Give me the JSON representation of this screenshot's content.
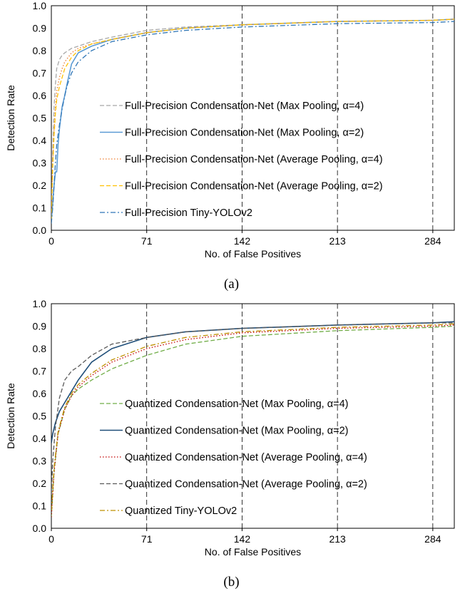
{
  "chart_data": [
    {
      "type": "line",
      "caption": "(a)",
      "title": "",
      "xlabel": "No. of False Positives",
      "ylabel": "Detection Rate",
      "xlim": [
        0,
        300
      ],
      "ylim": [
        0,
        1.0
      ],
      "xticks": [
        0,
        71,
        142,
        213,
        284
      ],
      "yticks": [
        0.0,
        0.1,
        0.2,
        0.3,
        0.4,
        0.5,
        0.6,
        0.7,
        0.8,
        0.9,
        1.0
      ],
      "ytick_labels": [
        "0.0",
        "0.1",
        "0.2",
        "0.3",
        "0.4",
        "0.5",
        "0.6",
        "0.7",
        "0.8",
        "0.9",
        "1.0"
      ],
      "vertical_gridlines": [
        71,
        142,
        213,
        284
      ],
      "legend_position": "center-right",
      "series": [
        {
          "name": "Full-Precision Condensation-Net (Max Pooling, α=4)",
          "color": "#a8a8a8",
          "dash": "dashed",
          "x": [
            0,
            1,
            2,
            3,
            4,
            6,
            8,
            10,
            15,
            20,
            30,
            45,
            71,
            100,
            142,
            213,
            284,
            300
          ],
          "y": [
            0.05,
            0.35,
            0.55,
            0.65,
            0.72,
            0.76,
            0.78,
            0.79,
            0.81,
            0.82,
            0.84,
            0.86,
            0.89,
            0.905,
            0.915,
            0.93,
            0.935,
            0.94
          ]
        },
        {
          "name": "Full-Precision Condensation-Net (Max Pooling, α=2)",
          "color": "#5b9bd5",
          "dash": "solid",
          "x": [
            0,
            1,
            2,
            3,
            4,
            5,
            6,
            8,
            10,
            12,
            15,
            20,
            30,
            45,
            71,
            100,
            142,
            213,
            284,
            300
          ],
          "y": [
            0.04,
            0.12,
            0.2,
            0.26,
            0.26,
            0.38,
            0.45,
            0.55,
            0.6,
            0.66,
            0.74,
            0.79,
            0.82,
            0.85,
            0.88,
            0.9,
            0.915,
            0.93,
            0.935,
            0.94
          ]
        },
        {
          "name": "Full-Precision Condensation-Net (Average Pooling, α=4)",
          "color": "#ed7d31",
          "dash": "dotted",
          "x": [
            0,
            1,
            2,
            3,
            4,
            6,
            8,
            10,
            15,
            20,
            30,
            45,
            71,
            100,
            142,
            213,
            284,
            300
          ],
          "y": [
            0.05,
            0.3,
            0.45,
            0.55,
            0.62,
            0.68,
            0.72,
            0.75,
            0.79,
            0.81,
            0.83,
            0.85,
            0.88,
            0.9,
            0.915,
            0.93,
            0.935,
            0.94
          ]
        },
        {
          "name": "Full-Precision Condensation-Net (Average Pooling, α=2)",
          "color": "#ffc000",
          "dash": "dashed",
          "x": [
            0,
            1,
            2,
            3,
            4,
            6,
            8,
            10,
            15,
            20,
            30,
            45,
            71,
            100,
            142,
            213,
            284,
            300
          ],
          "y": [
            0.05,
            0.28,
            0.42,
            0.52,
            0.58,
            0.64,
            0.68,
            0.72,
            0.77,
            0.8,
            0.83,
            0.85,
            0.88,
            0.9,
            0.915,
            0.93,
            0.935,
            0.94
          ]
        },
        {
          "name": "Full-Precision Tiny-YOLOv2",
          "color": "#2e75b6",
          "dash": "dashdot",
          "x": [
            0,
            1,
            2,
            3,
            4,
            6,
            8,
            10,
            12,
            15,
            20,
            30,
            45,
            71,
            100,
            142,
            213,
            284,
            300
          ],
          "y": [
            0.03,
            0.1,
            0.2,
            0.3,
            0.38,
            0.47,
            0.54,
            0.6,
            0.65,
            0.7,
            0.75,
            0.8,
            0.84,
            0.87,
            0.89,
            0.905,
            0.92,
            0.925,
            0.93
          ]
        }
      ]
    },
    {
      "type": "line",
      "caption": "(b)",
      "title": "",
      "xlabel": "No. of False Positives",
      "ylabel": "Detection Rate",
      "xlim": [
        0,
        300
      ],
      "ylim": [
        0,
        1.0
      ],
      "xticks": [
        0,
        71,
        142,
        213,
        284
      ],
      "yticks": [
        0.0,
        0.1,
        0.2,
        0.3,
        0.4,
        0.5,
        0.6,
        0.7,
        0.8,
        0.9,
        1.0
      ],
      "ytick_labels": [
        "0.0",
        "0.1",
        "0.2",
        "0.3",
        "0.4",
        "0.5",
        "0.6",
        "0.7",
        "0.8",
        "0.9",
        "1.0"
      ],
      "vertical_gridlines": [
        71,
        142,
        213,
        284
      ],
      "legend_position": "center-right",
      "series": [
        {
          "name": "Quantized Condensation-Net (Max Pooling, α=4)",
          "color": "#70ad47",
          "dash": "dashed",
          "x": [
            0,
            2,
            5,
            10,
            15,
            20,
            30,
            45,
            71,
            100,
            142,
            213,
            284,
            300
          ],
          "y": [
            0.05,
            0.25,
            0.42,
            0.53,
            0.59,
            0.62,
            0.66,
            0.71,
            0.77,
            0.82,
            0.855,
            0.88,
            0.895,
            0.9
          ]
        },
        {
          "name": "Quantized Condensation-Net (Max Pooling, α=2)",
          "color": "#1f4e79",
          "dash": "solid",
          "x": [
            0,
            1,
            3,
            6,
            10,
            15,
            20,
            30,
            45,
            71,
            100,
            142,
            213,
            284,
            300
          ],
          "y": [
            0.38,
            0.42,
            0.47,
            0.52,
            0.56,
            0.61,
            0.66,
            0.74,
            0.8,
            0.85,
            0.875,
            0.89,
            0.905,
            0.915,
            0.92
          ]
        },
        {
          "name": "Quantized Condensation-Net (Average Pooling, α=4)",
          "color": "#c00000",
          "dash": "dotted",
          "x": [
            0,
            2,
            5,
            10,
            15,
            20,
            30,
            45,
            71,
            100,
            142,
            213,
            284,
            300
          ],
          "y": [
            0.05,
            0.25,
            0.42,
            0.53,
            0.59,
            0.63,
            0.68,
            0.74,
            0.8,
            0.84,
            0.87,
            0.89,
            0.9,
            0.905
          ]
        },
        {
          "name": "Quantized Condensation-Net (Average Pooling, α=2)",
          "color": "#595959",
          "dash": "dashed",
          "x": [
            0,
            1,
            3,
            6,
            10,
            15,
            20,
            30,
            45,
            71,
            100,
            142,
            213,
            284,
            300
          ],
          "y": [
            0.15,
            0.3,
            0.45,
            0.58,
            0.66,
            0.7,
            0.72,
            0.77,
            0.82,
            0.85,
            0.875,
            0.89,
            0.905,
            0.915,
            0.915
          ]
        },
        {
          "name": "Quantized Tiny-YOLOv2",
          "color": "#bf9000",
          "dash": "dashdot",
          "x": [
            0,
            2,
            5,
            10,
            15,
            20,
            30,
            45,
            71,
            100,
            142,
            213,
            284,
            300
          ],
          "y": [
            0.08,
            0.27,
            0.43,
            0.54,
            0.6,
            0.64,
            0.69,
            0.75,
            0.81,
            0.85,
            0.875,
            0.895,
            0.905,
            0.91
          ]
        }
      ]
    }
  ]
}
